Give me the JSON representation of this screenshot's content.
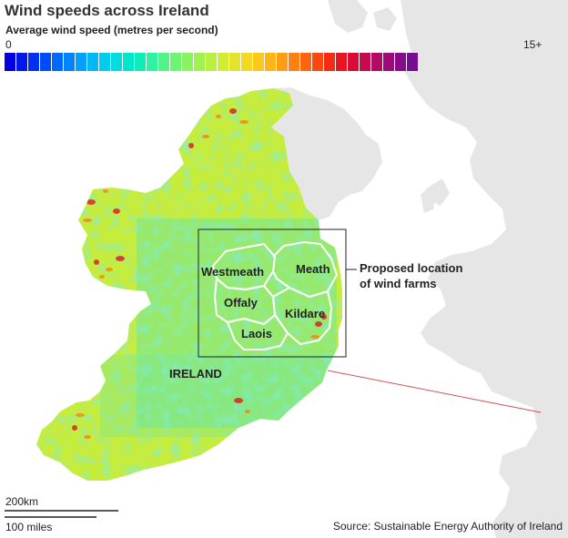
{
  "title": "Wind speeds across Ireland",
  "legend": {
    "label": "Average wind speed (metres per second)",
    "min_label": "0",
    "max_label": "15+",
    "colors": [
      "#0000e0",
      "#0018ea",
      "#0030f2",
      "#004cf8",
      "#0068fc",
      "#0084fe",
      "#00a0ff",
      "#00b8f8",
      "#00ccee",
      "#00dce0",
      "#00e8cc",
      "#10eeb8",
      "#30f2a0",
      "#50f488",
      "#6cf472",
      "#88f460",
      "#a2f24e",
      "#baf040",
      "#d0ec34",
      "#e4e42c",
      "#f4d824",
      "#fcc81e",
      "#ffb41a",
      "#ff9c16",
      "#ff8012",
      "#ff6410",
      "#fc4810",
      "#f42c14",
      "#e81420",
      "#d80c34",
      "#c40c4c",
      "#b00c64",
      "#9c0c78",
      "#880c88",
      "#780c92"
    ]
  },
  "counties": {
    "westmeath": "Westmeath",
    "meath": "Meath",
    "offaly": "Offaly",
    "kildare": "Kildare",
    "laois": "Laois"
  },
  "country_label": "IRELAND",
  "callout": {
    "line1": "Proposed location",
    "line2": "of wind farms"
  },
  "scale": {
    "km": "200km",
    "miles": "100 miles"
  },
  "source": "Source: Sustainable Energy Authority of Ireland",
  "colors": {
    "sea": "#ffffff",
    "land_uk": "#e6e6e6",
    "ireland_base": "#c6ec3c",
    "hotspot": "#d8262a",
    "callout_line": "#d45050"
  }
}
